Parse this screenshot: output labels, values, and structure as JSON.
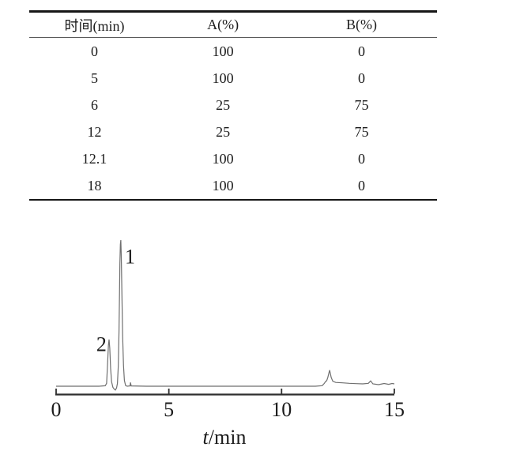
{
  "figure": {
    "table": {
      "headers": [
        "时间(min)",
        "A(%)",
        "B(%)"
      ],
      "rows": [
        [
          "0",
          "100",
          "0"
        ],
        [
          "5",
          "100",
          "0"
        ],
        [
          "6",
          "25",
          "75"
        ],
        [
          "12",
          "25",
          "75"
        ],
        [
          "12.1",
          "100",
          "0"
        ],
        [
          "18",
          "100",
          "0"
        ]
      ]
    }
  },
  "chart_data": {
    "type": "line",
    "title": "",
    "xlabel": "t/min",
    "xlabel_parts": {
      "italic": "t",
      "rest": "/min"
    },
    "ylabel": "",
    "xlim": [
      0,
      15
    ],
    "ylim": [
      -5,
      110
    ],
    "grid": false,
    "x_ticks": [
      0,
      5,
      10,
      15
    ],
    "x_tick_labels": [
      "0",
      "5",
      "10",
      "15"
    ],
    "colors": {
      "trace": "#6f6f6f",
      "axis": "#2e2e2e",
      "text": "#1b1b1b"
    },
    "series": [
      {
        "name": "chromatogram-trace",
        "points": [
          [
            0,
            0
          ],
          [
            1.0,
            0
          ],
          [
            1.9,
            0
          ],
          [
            2.18,
            0.3
          ],
          [
            2.24,
            2
          ],
          [
            2.28,
            14
          ],
          [
            2.32,
            28
          ],
          [
            2.35,
            32
          ],
          [
            2.38,
            26
          ],
          [
            2.42,
            12
          ],
          [
            2.46,
            3
          ],
          [
            2.52,
            -0.8
          ],
          [
            2.58,
            -2
          ],
          [
            2.63,
            -2.6
          ],
          [
            2.68,
            -1.2
          ],
          [
            2.72,
            2
          ],
          [
            2.76,
            14
          ],
          [
            2.79,
            38
          ],
          [
            2.81,
            62
          ],
          [
            2.83,
            84
          ],
          [
            2.85,
            97
          ],
          [
            2.87,
            100
          ],
          [
            2.89,
            88
          ],
          [
            2.92,
            62
          ],
          [
            2.95,
            34
          ],
          [
            2.99,
            14
          ],
          [
            3.03,
            4
          ],
          [
            3.08,
            0.5
          ],
          [
            3.15,
            0
          ],
          [
            3.28,
            0.2
          ],
          [
            3.3,
            2.6
          ],
          [
            3.33,
            0.2
          ],
          [
            4,
            0
          ],
          [
            6,
            0
          ],
          [
            8,
            0
          ],
          [
            10,
            0
          ],
          [
            11.5,
            0
          ],
          [
            11.8,
            0.4
          ],
          [
            11.9,
            2
          ],
          [
            11.95,
            3.2
          ],
          [
            12.0,
            3.8
          ],
          [
            12.05,
            6
          ],
          [
            12.13,
            11
          ],
          [
            12.2,
            6
          ],
          [
            12.27,
            3.4
          ],
          [
            12.4,
            2.6
          ],
          [
            12.7,
            2.3
          ],
          [
            13.0,
            2.0
          ],
          [
            13.3,
            1.8
          ],
          [
            13.6,
            1.6
          ],
          [
            13.85,
            2.0
          ],
          [
            13.95,
            3.6
          ],
          [
            14.05,
            1.6
          ],
          [
            14.3,
            1.1
          ],
          [
            14.55,
            1.9
          ],
          [
            14.75,
            1.3
          ],
          [
            14.9,
            1.9
          ],
          [
            15.0,
            1.6
          ]
        ]
      }
    ],
    "peak_labels": [
      {
        "label": "1",
        "t": 3.05,
        "y": 84,
        "anchor": "start"
      },
      {
        "label": "2",
        "t": 2.24,
        "y": 24,
        "anchor": "end"
      }
    ]
  }
}
